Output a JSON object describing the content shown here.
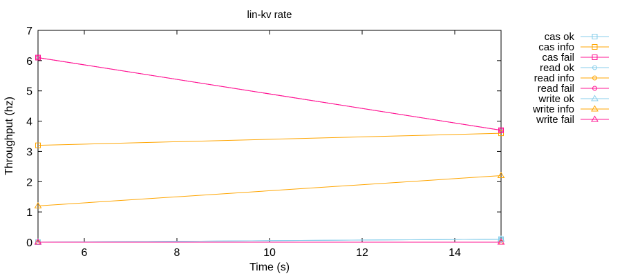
{
  "chart_data": {
    "type": "line",
    "title": "lin-kv rate",
    "xlabel": "Time (s)",
    "ylabel": "Throughput (hz)",
    "xlim": [
      5,
      15
    ],
    "ylim": [
      0,
      7
    ],
    "xticks": [
      6,
      8,
      10,
      12,
      14
    ],
    "yticks": [
      0,
      1,
      2,
      3,
      4,
      5,
      6,
      7
    ],
    "grid": false,
    "legend_position": "outside-right",
    "series": [
      {
        "name": "cas ok",
        "color": "#87CEEB",
        "marker": "square",
        "x": [
          5,
          15
        ],
        "y": [
          0,
          0.1
        ]
      },
      {
        "name": "cas info",
        "color": "#FFA500",
        "marker": "square",
        "x": [
          5,
          15
        ],
        "y": [
          3.2,
          3.6
        ]
      },
      {
        "name": "cas fail",
        "color": "#FF1493",
        "marker": "square",
        "x": [
          5,
          15
        ],
        "y": [
          6.1,
          3.7
        ]
      },
      {
        "name": "read ok",
        "color": "#87CEEB",
        "marker": "circle",
        "x": [
          5,
          15
        ],
        "y": [
          0,
          0.1
        ]
      },
      {
        "name": "read info",
        "color": "#FFA500",
        "marker": "circle",
        "x": [
          5,
          15
        ],
        "y": [
          0,
          0
        ]
      },
      {
        "name": "read fail",
        "color": "#FF1493",
        "marker": "circle",
        "x": [
          5,
          15
        ],
        "y": [
          6.1,
          3.7
        ]
      },
      {
        "name": "write ok",
        "color": "#87CEEB",
        "marker": "triangle",
        "x": [
          5,
          15
        ],
        "y": [
          0,
          0.1
        ]
      },
      {
        "name": "write info",
        "color": "#FFA500",
        "marker": "triangle",
        "x": [
          5,
          15
        ],
        "y": [
          1.2,
          2.2
        ]
      },
      {
        "name": "write fail",
        "color": "#FF1493",
        "marker": "triangle",
        "x": [
          5,
          15
        ],
        "y": [
          0,
          0
        ]
      }
    ]
  }
}
